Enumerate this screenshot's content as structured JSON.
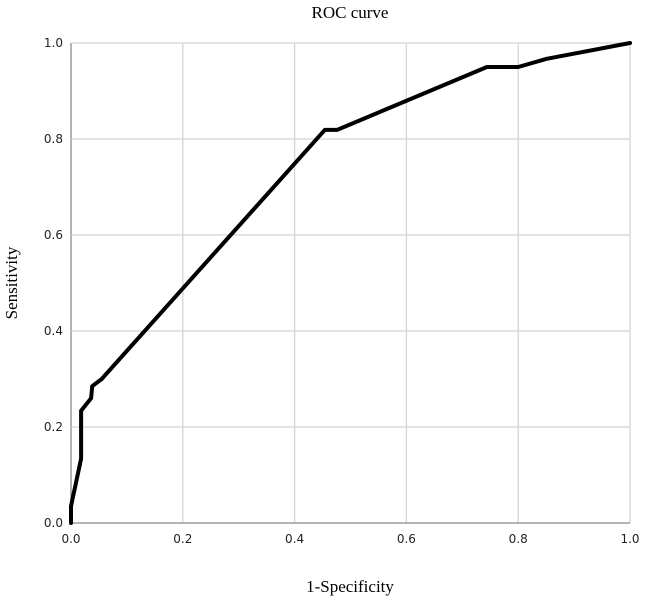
{
  "chart_data": {
    "type": "line",
    "title": "ROC curve",
    "xlabel": "1-Specificity",
    "ylabel": "Sensitivity",
    "xlim": [
      0,
      1
    ],
    "ylim": [
      0,
      1
    ],
    "grid": true,
    "xticks": [
      "0.0",
      "0.2",
      "0.4",
      "0.6",
      "0.8",
      "1.0"
    ],
    "yticks": [
      "0.0",
      "0.2",
      "0.4",
      "0.6",
      "0.8",
      "1.0"
    ],
    "series": [
      {
        "color": "#000000",
        "x": [
          0,
          0,
          0.018,
          0.018,
          0.036,
          0.038,
          0.055,
          0.454,
          0.476,
          0.744,
          0.8,
          0.851,
          1
        ],
        "y": [
          0,
          0.035,
          0.134,
          0.234,
          0.26,
          0.285,
          0.3,
          0.819,
          0.819,
          0.95,
          0.95,
          0.967,
          1
        ]
      }
    ]
  }
}
